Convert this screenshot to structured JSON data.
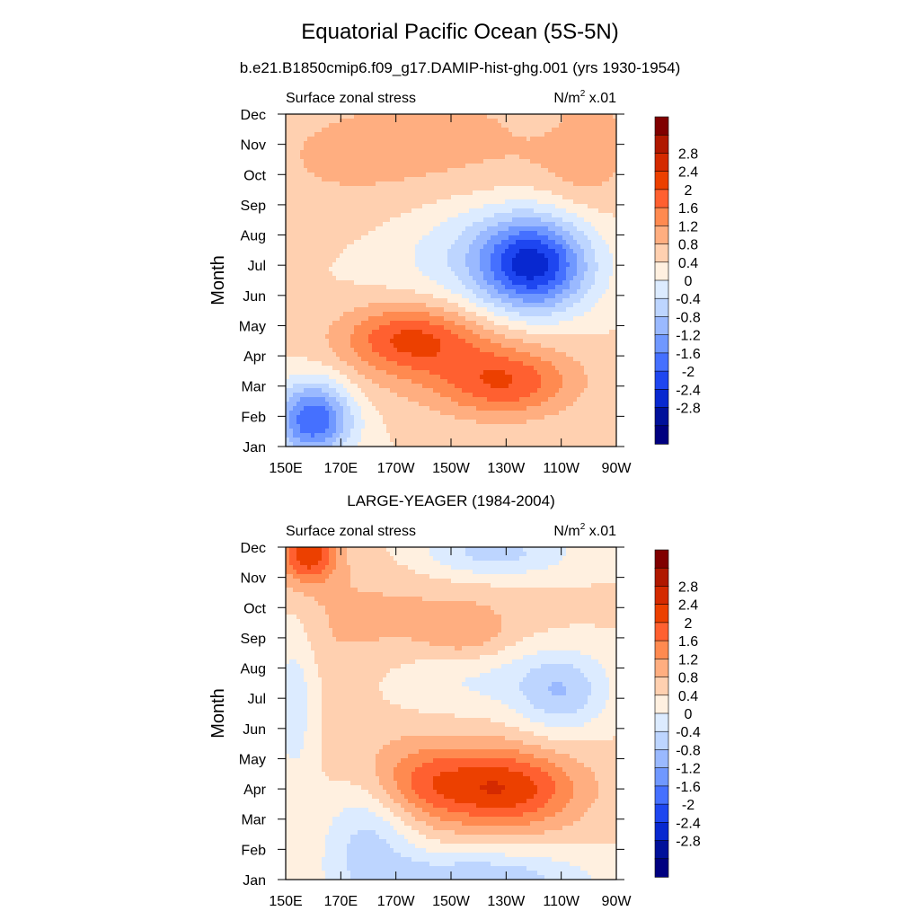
{
  "figure": {
    "title": "Equatorial Pacific Ocean (5S-5N)",
    "subtitle": "b.e21.B1850cmip6.f09_g17.DAMIP-hist-ghg.001 (yrs 1930-1954)",
    "second_panel_title": "LARGE-YEAGER (1984-2004)"
  },
  "colorbar": {
    "labels": [
      "2.8",
      "2.4",
      "2",
      "1.6",
      "1.2",
      "0.8",
      "0.4",
      "0",
      "-0.4",
      "-0.8",
      "-1.2",
      "-1.6",
      "-2",
      "-2.4",
      "-2.8"
    ],
    "colors": [
      "#800000",
      "#b01800",
      "#d42a00",
      "#ec4000",
      "#ff6030",
      "#ff8a50",
      "#ffae80",
      "#ffd0b0",
      "#fff0e0",
      "#dcebff",
      "#bdd5ff",
      "#9ab9ff",
      "#7098ff",
      "#4570ff",
      "#1e46f0",
      "#0828d0",
      "#00109a",
      "#000080"
    ]
  },
  "chart_data": [
    {
      "type": "heatmap",
      "title": "",
      "left_label": "Surface zonal stress",
      "right_label": "N/m",
      "right_label_sup": "2",
      "right_label_suffix": " x.01",
      "ylabel": "Month",
      "xlabel": "",
      "x_tick_labels": [
        "150E",
        "170E",
        "170W",
        "150W",
        "130W",
        "110W",
        "90W"
      ],
      "y_tick_labels": [
        "Jan",
        "Feb",
        "Mar",
        "Apr",
        "May",
        "Jun",
        "Jul",
        "Aug",
        "Sep",
        "Oct",
        "Nov",
        "Dec"
      ],
      "x_range_deg_east": [
        150,
        270
      ],
      "y_range_month": [
        1,
        12
      ],
      "levels": [
        -2.8,
        -2.4,
        -2,
        -1.6,
        -1.2,
        -0.8,
        -0.4,
        0,
        0.4,
        0.8,
        1.2,
        1.6,
        2,
        2.4,
        2.8
      ],
      "features": [
        {
          "lon": 160,
          "month": 1.9,
          "amp": -2.4,
          "sx": 10,
          "sy": 0.9
        },
        {
          "lon": 240,
          "month": 7.0,
          "amp": -2.6,
          "sx": 14,
          "sy": 1.1
        },
        {
          "lon": 220,
          "month": 7.6,
          "amp": -0.8,
          "sx": 25,
          "sy": 1.5
        },
        {
          "lon": 195,
          "month": 4.6,
          "amp": 1.4,
          "sx": 17,
          "sy": 0.8
        },
        {
          "lon": 230,
          "month": 3.1,
          "amp": 1.3,
          "sx": 17,
          "sy": 0.8
        },
        {
          "lon": 210,
          "month": 3.9,
          "amp": 0.5,
          "sx": 30,
          "sy": 1.2
        },
        {
          "lon": 200,
          "month": 10.6,
          "amp": 0.6,
          "sx": 50,
          "sy": 1.8
        },
        {
          "lon": 258,
          "month": 11.0,
          "amp": 0.5,
          "sx": 10,
          "sy": 1.4
        },
        {
          "lon": 243,
          "month": 11.9,
          "amp": -0.4,
          "sx": 6,
          "sy": 0.4
        }
      ]
    },
    {
      "type": "heatmap",
      "title": "LARGE-YEAGER (1984-2004)",
      "left_label": "Surface zonal stress",
      "right_label": "N/m",
      "right_label_sup": "2",
      "right_label_suffix": " x.01",
      "ylabel": "Month",
      "xlabel": "",
      "x_tick_labels": [
        "150E",
        "170E",
        "170W",
        "150W",
        "130W",
        "110W",
        "90W"
      ],
      "y_tick_labels": [
        "Jan",
        "Feb",
        "Mar",
        "Apr",
        "May",
        "Jun",
        "Jul",
        "Aug",
        "Sep",
        "Oct",
        "Nov",
        "Dec"
      ],
      "x_range_deg_east": [
        150,
        270
      ],
      "y_range_month": [
        1,
        12
      ],
      "levels": [
        -2.8,
        -2.4,
        -2,
        -1.6,
        -1.2,
        -0.8,
        -0.4,
        0,
        0.4,
        0.8,
        1.2,
        1.6,
        2,
        2.4,
        2.8
      ],
      "features": [
        {
          "lon": 158,
          "month": 11.8,
          "amp": 1.8,
          "sx": 7,
          "sy": 0.7
        },
        {
          "lon": 231,
          "month": 4.0,
          "amp": 1.6,
          "sx": 17,
          "sy": 0.9
        },
        {
          "lon": 200,
          "month": 4.2,
          "amp": 1.0,
          "sx": 15,
          "sy": 0.9
        },
        {
          "lon": 215,
          "month": 4.3,
          "amp": 0.3,
          "sx": 40,
          "sy": 1.6
        },
        {
          "lon": 180,
          "month": 2.5,
          "amp": -1.0,
          "sx": 12,
          "sy": 1.4
        },
        {
          "lon": 220,
          "month": 1.0,
          "amp": -1.2,
          "sx": 28,
          "sy": 0.7
        },
        {
          "lon": 225,
          "month": 11.8,
          "amp": -1.0,
          "sx": 20,
          "sy": 0.6
        },
        {
          "lon": 250,
          "month": 7.2,
          "amp": -1.1,
          "sx": 12,
          "sy": 1.0
        },
        {
          "lon": 215,
          "month": 7.7,
          "amp": -0.6,
          "sx": 25,
          "sy": 0.9
        },
        {
          "lon": 153,
          "month": 7.0,
          "amp": -0.8,
          "sx": 6,
          "sy": 2.2
        },
        {
          "lon": 207,
          "month": 9.4,
          "amp": 0.4,
          "sx": 30,
          "sy": 1.2
        },
        {
          "lon": 215,
          "month": 9.1,
          "amp": 0.5,
          "sx": 10,
          "sy": 0.6
        },
        {
          "lon": 165,
          "month": 9.5,
          "amp": 0.3,
          "sx": 25,
          "sy": 2.5
        }
      ]
    }
  ]
}
